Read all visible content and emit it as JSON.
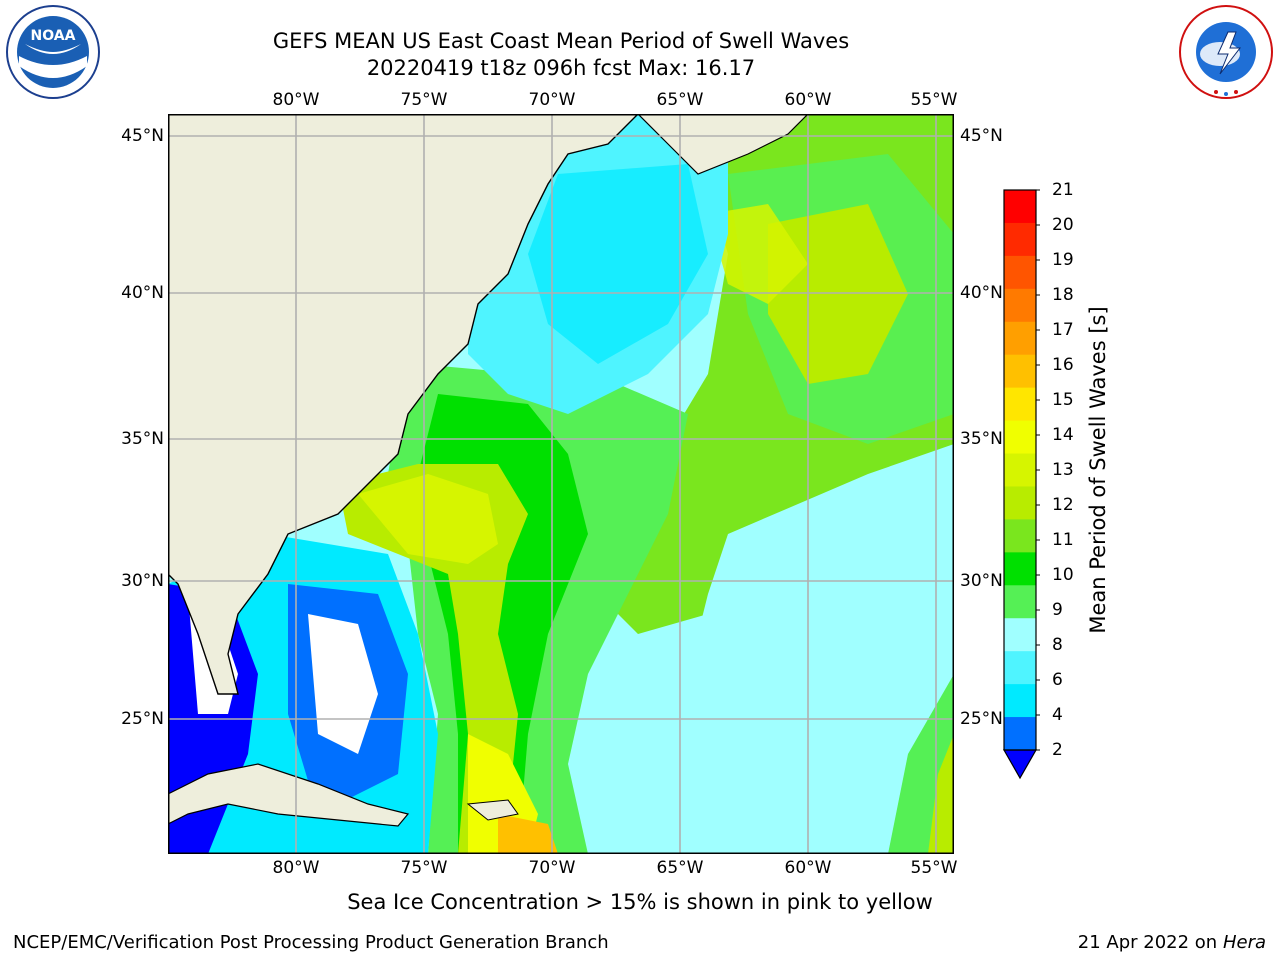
{
  "title": {
    "line1": "GEFS MEAN US East Coast Mean Period of Swell Waves",
    "line2": "20220419 t18z 096h fcst   Max: 16.17"
  },
  "map": {
    "lon_labels": [
      "80°W",
      "75°W",
      "70°W",
      "65°W",
      "60°W",
      "55°W"
    ],
    "lat_labels": [
      "45°N",
      "40°N",
      "35°N",
      "30°N",
      "25°N"
    ],
    "extent": {
      "lon_min": -85,
      "lon_max": -54.5,
      "lat_min": 20.5,
      "lat_max": 46
    },
    "gridlines": true,
    "land_color": "#eeeedc",
    "grid_color": "#b0b0b0"
  },
  "colorbar": {
    "label": "Mean Period of Swell Waves [s]",
    "ticks": [
      "21",
      "20",
      "19",
      "18",
      "17",
      "16",
      "15",
      "14",
      "13",
      "12",
      "11",
      "10",
      "9",
      "8",
      "6",
      "4",
      "2"
    ],
    "colors": [
      "#ff0000",
      "#ff2a00",
      "#ff5500",
      "#ff7a00",
      "#ff9f00",
      "#ffc000",
      "#ffe600",
      "#f0ff00",
      "#d6f500",
      "#b8ec00",
      "#7ae61e",
      "#00e000",
      "#55f055",
      "#a0ffff",
      "#4ff4ff",
      "#00eaff",
      "#0070ff"
    ],
    "extend_below_color": "#0000ff"
  },
  "footer": {
    "left": "NCEP/EMC/Verification Post Processing Product Generation Branch",
    "note": "Sea Ice Concentration > 15% is shown in pink to yellow",
    "date": "21 Apr 2022 on",
    "machine": "Hera"
  },
  "logos": {
    "left": "NOAA",
    "right": "NATIONAL WEATHER SERVICE"
  }
}
